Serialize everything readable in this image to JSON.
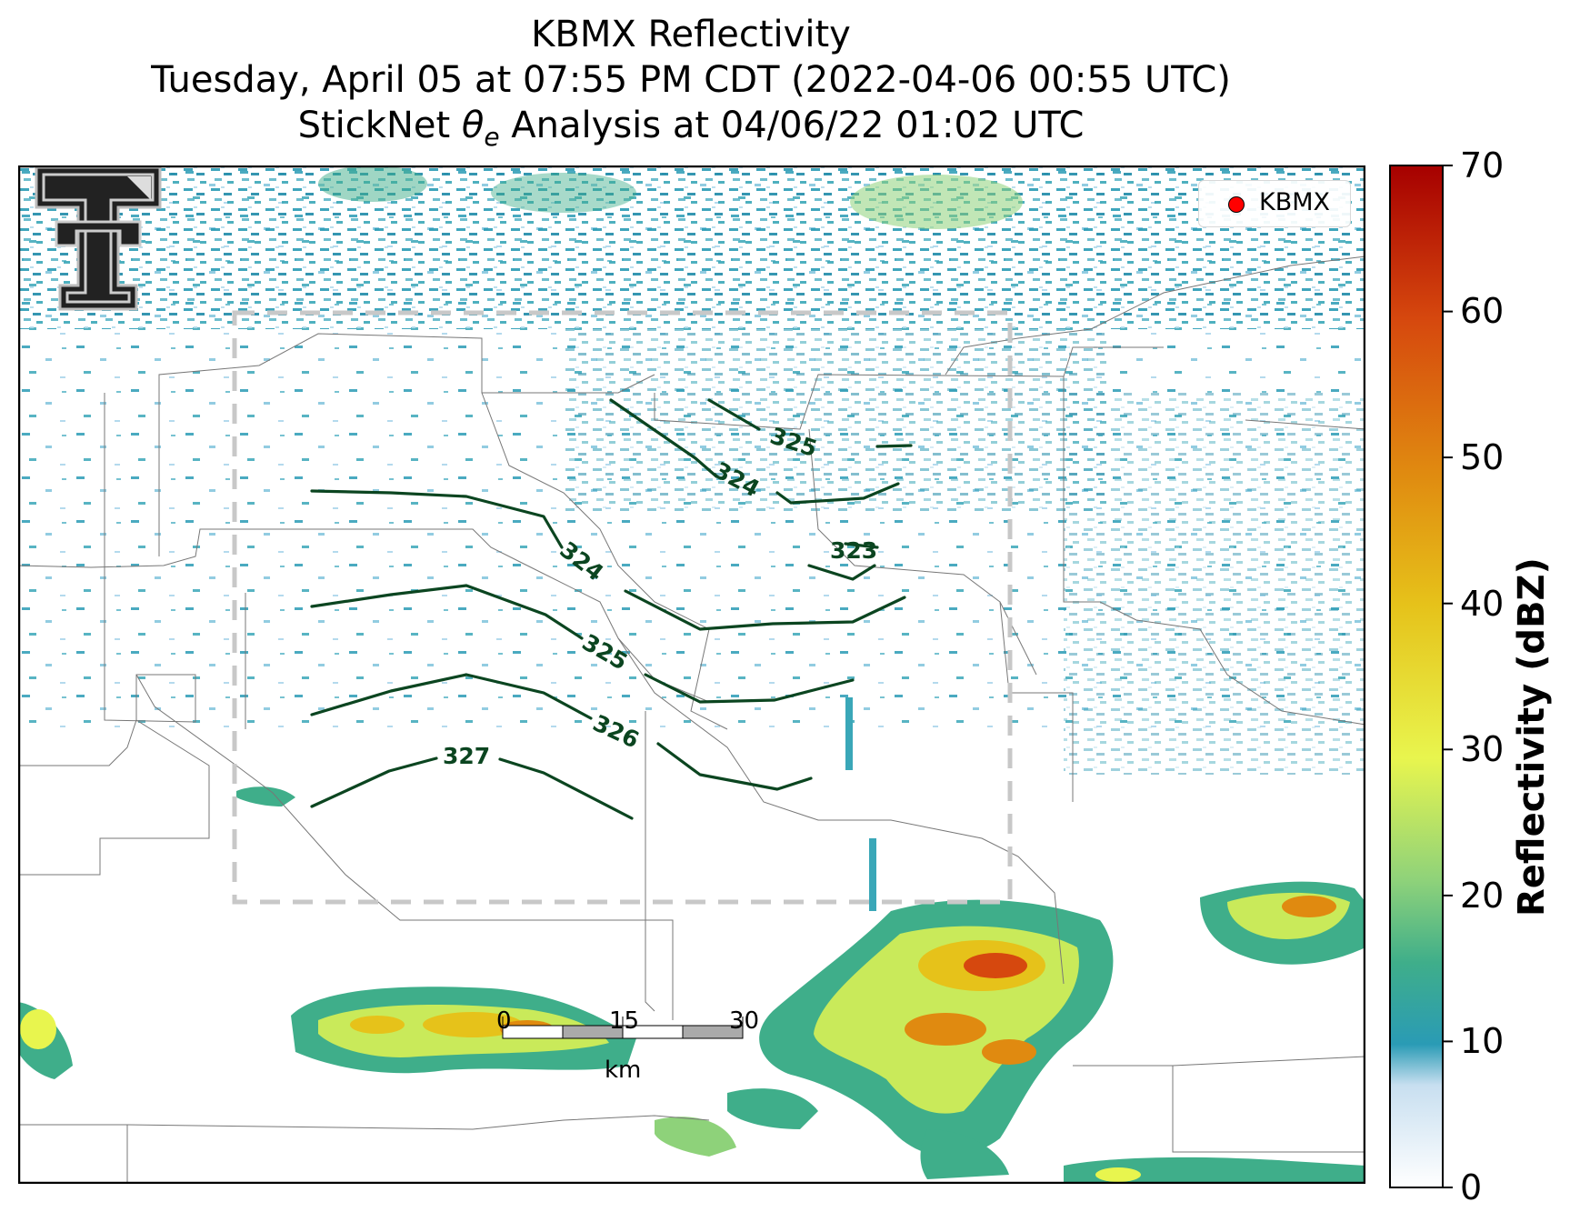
{
  "title": {
    "line1": "KBMX Reflectivity",
    "line2": "Tuesday, April 05 at 07:55 PM CDT (2022-04-06 00:55 UTC)",
    "line3_prefix": "StickNet ",
    "line3_symbol": "θ",
    "line3_subscript": "e",
    "line3_suffix": " Analysis at 04/06/22 01:02 UTC"
  },
  "legend": {
    "label": "KBMX",
    "marker_color": "#ff0000"
  },
  "colorbar": {
    "label": "Reflectivity (dBZ)",
    "ticks": [
      "0",
      "10",
      "20",
      "30",
      "40",
      "50",
      "60",
      "70"
    ],
    "range": [
      0,
      70
    ],
    "colors": [
      "#ffffff",
      "#c8dff0",
      "#2a9bb5",
      "#3fae8a",
      "#8ed27a",
      "#e8f54e",
      "#e6c21a",
      "#e08a10",
      "#d6480e",
      "#a60000"
    ]
  },
  "contours": {
    "color": "#0b4520",
    "labels": [
      "325",
      "324",
      "323",
      "324",
      "325",
      "326",
      "327"
    ]
  },
  "scale_bar": {
    "ticks": [
      "0",
      "15",
      "30"
    ],
    "unit": "km"
  },
  "logo": {
    "name": "texas-tech-double-t-logo"
  }
}
